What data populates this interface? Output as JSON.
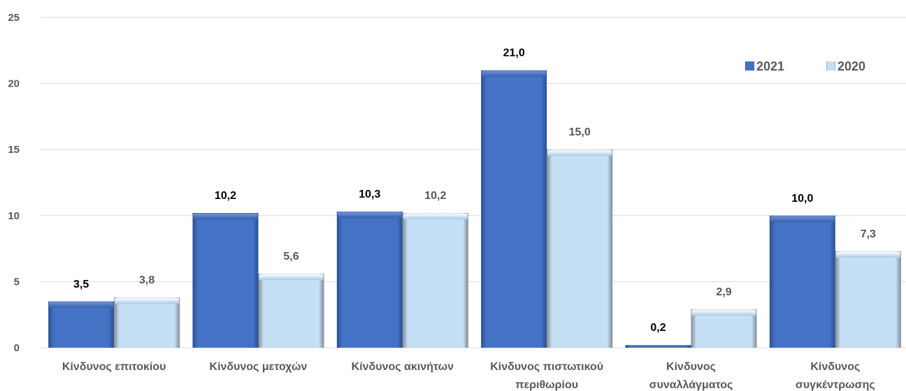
{
  "chart_data": {
    "type": "bar",
    "categories": [
      [
        "Κίνδυνος επιτοκίου"
      ],
      [
        "Κίνδυνος μετοχών"
      ],
      [
        "Κίνδυνος ακινήτων"
      ],
      [
        "Κίνδυνος πιστωτικού",
        "περιθωρίου"
      ],
      [
        "Κίνδυνος",
        "συναλλάγματος"
      ],
      [
        "Κίνδυνος",
        "συγκέντρωσης"
      ]
    ],
    "series": [
      {
        "name": "2021",
        "values": [
          3.5,
          10.2,
          10.3,
          21.0,
          0.2,
          10.0
        ],
        "labels": [
          "3,5",
          "10,2",
          "10,3",
          "21,0",
          "0,2",
          "10,0"
        ]
      },
      {
        "name": "2020",
        "values": [
          3.8,
          5.6,
          10.2,
          15.0,
          2.9,
          7.3
        ],
        "labels": [
          "3,8",
          "5,6",
          "10,2",
          "15,0",
          "2,9",
          "7,3"
        ]
      }
    ],
    "yticks": [
      "0",
      "5",
      "10",
      "15",
      "20",
      "25"
    ],
    "ylim": [
      0,
      25
    ],
    "grid": true,
    "legend_position": "top-right",
    "colors": {
      "2021": "#4472C4",
      "2020": "#C5DFF5",
      "grid": "#D9D9D9"
    }
  }
}
